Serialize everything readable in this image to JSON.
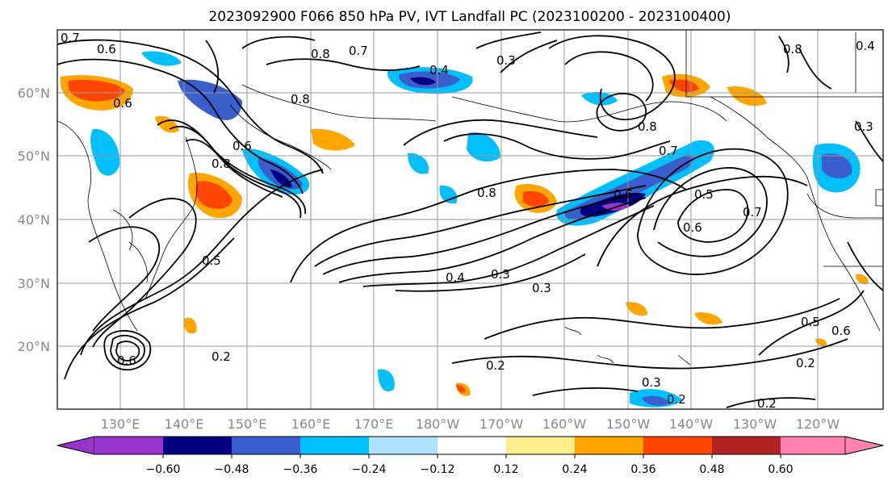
{
  "title": "2023092900 F066 850 hPa PV, IVT Landfall PC (2023100200 - 2023100400)",
  "latitude_labels": [
    "60°N",
    "50°N",
    "40°N",
    "30°N",
    "20°N"
  ],
  "longitude_labels": [
    "130°E",
    "140°E",
    "150°E",
    "160°E",
    "170°E",
    "180°W",
    "170°W",
    "160°W",
    "150°W",
    "140°W",
    "130°W",
    "120°W"
  ],
  "colorbar": {
    "colors": [
      "#9933cc",
      "#000080",
      "#3a5fcd",
      "#00bfff",
      "#b0e2ff",
      "#ffffff",
      "#ffec8b",
      "#ffa500",
      "#ff4500",
      "#b22222",
      "#ff83b0"
    ],
    "tick_labels": [
      "−0.60",
      "−0.48",
      "−0.36",
      "−0.24",
      "−0.12",
      "0.12",
      "0.24",
      "0.36",
      "0.48",
      "0.60"
    ]
  },
  "contour_labels": [
    "0.7",
    "0.6",
    "0.8",
    "0.7",
    "0.3",
    "0.4",
    "0.8",
    "0.6",
    "0.8",
    "0.6",
    "0.7",
    "0.8",
    "0.8",
    "0.6",
    "0.5",
    "0.6",
    "0.7",
    "0.4",
    "0.3",
    "0.3",
    "0.5",
    "0.6",
    "0.2",
    "0.2",
    "0.3",
    "0.2",
    "0.2",
    "0.5",
    "0.6",
    "0.2",
    "0.3",
    "0.8",
    "0.4"
  ]
}
